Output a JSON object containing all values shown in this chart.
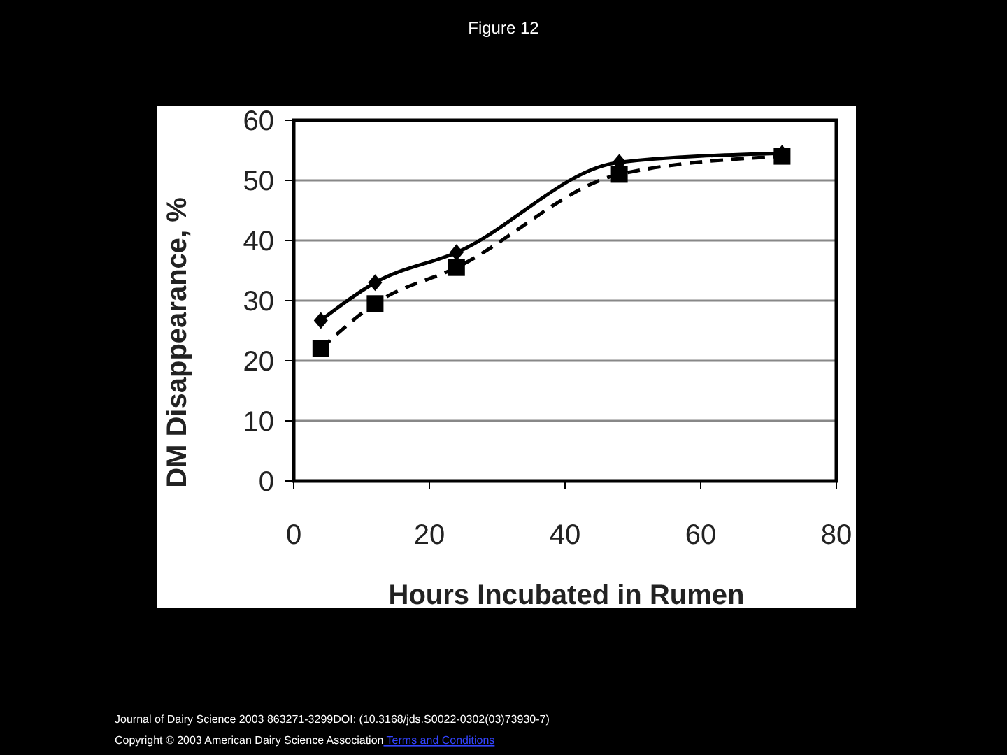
{
  "chart_data": {
    "type": "line",
    "title": "Figure 12",
    "xlabel": "Hours Incubated in Rumen",
    "ylabel": "DM Disappearance, %",
    "x": [
      4,
      12,
      24,
      48,
      72
    ],
    "series": [
      {
        "color": "#000000",
        "marker": "diamond",
        "line_style": "solid",
        "values": [
          26.7,
          33,
          38,
          53,
          54.5
        ]
      },
      {
        "color": "#000000",
        "marker": "square",
        "line_style": "dashed",
        "values": [
          22,
          29.5,
          35.5,
          51,
          54
        ]
      }
    ],
    "xlim": [
      0,
      80
    ],
    "xticks": [
      0,
      20,
      40,
      60,
      80
    ],
    "ylim": [
      0,
      60
    ],
    "yticks": [
      0,
      10,
      20,
      30,
      40,
      50,
      60
    ],
    "grid": "y",
    "annotations": [
      "Journal of Dairy Science 2003 863271-3299DOI: (10.3168/jds.S0022-0302(03)73930-7)",
      "Copyright © 2003 American Dairy Science Association",
      "Terms and Conditions"
    ]
  }
}
